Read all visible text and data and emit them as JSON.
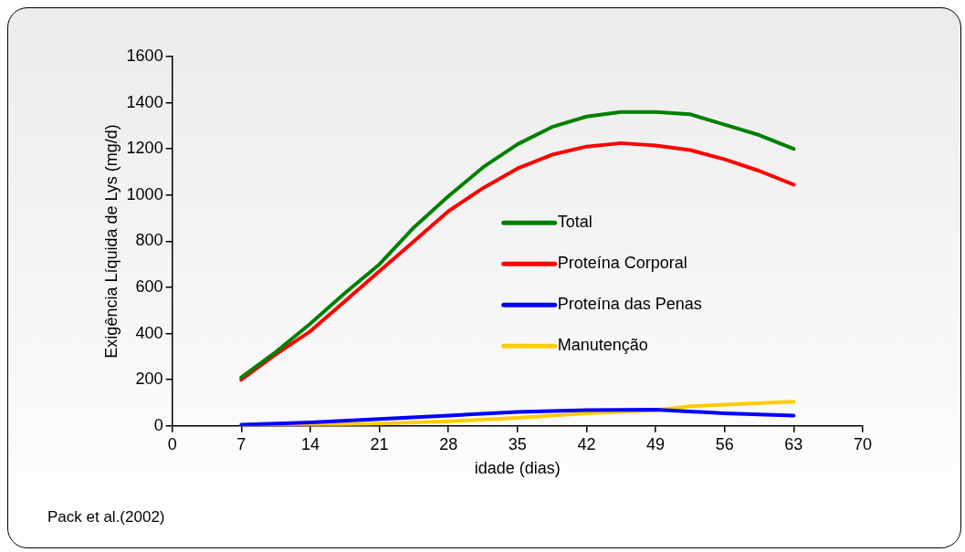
{
  "chart_data": {
    "type": "line",
    "xlabel": "idade (dias)",
    "ylabel": "Exigência Líquida de Lys (mg/d)",
    "xlim": [
      0,
      70
    ],
    "xticks": [
      0,
      7,
      14,
      21,
      28,
      35,
      42,
      49,
      56,
      63,
      70
    ],
    "ylim": [
      0,
      1600
    ],
    "yticks": [
      0,
      200,
      400,
      600,
      800,
      1000,
      1200,
      1400,
      1600
    ],
    "grid": false,
    "legend": "right",
    "marker": "none",
    "line_style": "solid",
    "annotations": [
      "Pack et al.(2002)"
    ],
    "series": [
      {
        "name": "Total",
        "color": "#008000",
        "x": [
          7,
          10.5,
          14,
          17.5,
          21,
          24.5,
          28,
          31.5,
          35,
          38.5,
          42,
          45.5,
          49,
          52.5,
          56,
          59.5,
          63
        ],
        "values": [
          210,
          320,
          443,
          575,
          700,
          860,
          995,
          1120,
          1220,
          1295,
          1340,
          1360,
          1360,
          1350,
          1305,
          1260,
          1200
        ]
      },
      {
        "name": "Proteína Corporal",
        "color": "#ff0000",
        "x": [
          7,
          10.5,
          14,
          17.5,
          21,
          24.5,
          28,
          31.5,
          35,
          38.5,
          42,
          45.5,
          49,
          52.5,
          56,
          59.5,
          63
        ],
        "values": [
          200,
          310,
          410,
          540,
          670,
          800,
          930,
          1030,
          1115,
          1175,
          1210,
          1225,
          1215,
          1195,
          1155,
          1105,
          1045
        ]
      },
      {
        "name": "Proteína das Penas",
        "color": "#0000ff",
        "x": [
          7,
          14,
          21,
          28,
          35,
          42,
          49,
          56,
          63
        ],
        "values": [
          5,
          15,
          30,
          45,
          60,
          68,
          70,
          55,
          45
        ]
      },
      {
        "name": "Manutenção",
        "color": "#ffcc00",
        "x": [
          7,
          14,
          21,
          28,
          35,
          42,
          49,
          52.5,
          56,
          63
        ],
        "values": [
          0,
          5,
          10,
          20,
          35,
          55,
          68,
          85,
          92,
          105
        ]
      }
    ]
  }
}
